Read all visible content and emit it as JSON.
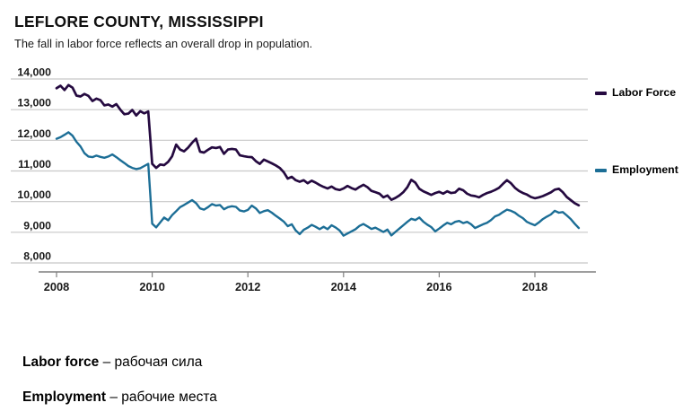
{
  "header": {
    "title": "LEFLORE COUNTY, MISSISSIPPI",
    "subtitle": "The fall in labor force reflects an overall drop in population."
  },
  "legend": {
    "items": [
      {
        "label": "Labor Force"
      },
      {
        "label": "Employment"
      }
    ]
  },
  "glossary": {
    "items": [
      {
        "term": "Labor force",
        "rest": " – рабочая сила"
      },
      {
        "term": "Employment",
        "rest": " – рабочие места"
      }
    ]
  },
  "chart_data": {
    "type": "line",
    "title": "LEFLORE COUNTY, MISSISSIPPI",
    "subtitle": "The fall in labor force reflects an overall drop in population.",
    "frequency": "monthly",
    "x_range": [
      "2008-01",
      "2018-12"
    ],
    "ylim": [
      8000,
      14000
    ],
    "grid": "horizontal",
    "legend_position": "right",
    "colors": {
      "labor_force": "#250a40",
      "employment": "#1c6e96",
      "gridline": "#c8c8c8",
      "axis": "#7f7f7f",
      "tick_text": "#1a1a1a"
    },
    "y_ticks": [
      {
        "label": "14,000",
        "value": 14000
      },
      {
        "label": "13,000",
        "value": 13000
      },
      {
        "label": "12,000",
        "value": 12000
      },
      {
        "label": "11,000",
        "value": 11000
      },
      {
        "label": "10,000",
        "value": 10000
      },
      {
        "label": "9,000",
        "value": 9000
      },
      {
        "label": "8,000",
        "value": 8000
      }
    ],
    "x_ticks": [
      {
        "label": "2008",
        "year": 2008
      },
      {
        "label": "2010",
        "year": 2010
      },
      {
        "label": "2012",
        "year": 2012
      },
      {
        "label": "2014",
        "year": 2014
      },
      {
        "label": "2016",
        "year": 2016
      },
      {
        "label": "2018",
        "year": 2018
      }
    ],
    "series": [
      {
        "name": "Labor Force",
        "color": "#250a40",
        "values": [
          13700,
          13780,
          13640,
          13800,
          13720,
          13460,
          13430,
          13510,
          13450,
          13280,
          13360,
          13310,
          13140,
          13170,
          13100,
          13180,
          13000,
          12850,
          12870,
          12990,
          12810,
          12950,
          12880,
          12940,
          11230,
          11100,
          11210,
          11190,
          11300,
          11480,
          11860,
          11700,
          11640,
          11760,
          11920,
          12050,
          11630,
          11600,
          11690,
          11770,
          11750,
          11780,
          11560,
          11700,
          11720,
          11700,
          11510,
          11480,
          11460,
          11450,
          11320,
          11230,
          11370,
          11310,
          11250,
          11180,
          11100,
          10960,
          10750,
          10810,
          10700,
          10650,
          10700,
          10600,
          10680,
          10620,
          10540,
          10480,
          10430,
          10490,
          10410,
          10380,
          10430,
          10510,
          10440,
          10390,
          10480,
          10550,
          10470,
          10350,
          10310,
          10260,
          10140,
          10200,
          10060,
          10120,
          10200,
          10310,
          10470,
          10710,
          10620,
          10420,
          10340,
          10280,
          10220,
          10280,
          10320,
          10260,
          10340,
          10280,
          10300,
          10420,
          10370,
          10260,
          10200,
          10180,
          10140,
          10220,
          10280,
          10320,
          10380,
          10450,
          10580,
          10700,
          10600,
          10450,
          10350,
          10280,
          10230,
          10150,
          10110,
          10140,
          10180,
          10240,
          10300,
          10390,
          10420,
          10310,
          10150,
          10050,
          9950,
          9880
        ]
      },
      {
        "name": "Employment",
        "color": "#1c6e96",
        "values": [
          12050,
          12100,
          12180,
          12260,
          12150,
          11950,
          11800,
          11580,
          11470,
          11450,
          11500,
          11460,
          11430,
          11470,
          11540,
          11450,
          11350,
          11260,
          11160,
          11100,
          11060,
          11090,
          11160,
          11230,
          9280,
          9160,
          9320,
          9480,
          9390,
          9560,
          9690,
          9820,
          9890,
          9970,
          10050,
          9950,
          9780,
          9740,
          9820,
          9920,
          9870,
          9890,
          9750,
          9820,
          9850,
          9830,
          9710,
          9680,
          9730,
          9870,
          9780,
          9630,
          9690,
          9720,
          9640,
          9540,
          9450,
          9350,
          9200,
          9260,
          9060,
          8940,
          9080,
          9150,
          9240,
          9180,
          9100,
          9180,
          9100,
          9230,
          9160,
          9060,
          8890,
          8960,
          9030,
          9100,
          9210,
          9270,
          9190,
          9110,
          9150,
          9080,
          9010,
          9090,
          8900,
          9010,
          9120,
          9230,
          9340,
          9440,
          9400,
          9480,
          9350,
          9250,
          9170,
          9030,
          9120,
          9220,
          9310,
          9260,
          9340,
          9370,
          9300,
          9340,
          9260,
          9140,
          9200,
          9260,
          9310,
          9400,
          9520,
          9570,
          9660,
          9740,
          9700,
          9640,
          9540,
          9460,
          9340,
          9280,
          9230,
          9320,
          9430,
          9510,
          9580,
          9700,
          9640,
          9660,
          9550,
          9430,
          9280,
          9140
        ]
      }
    ]
  }
}
